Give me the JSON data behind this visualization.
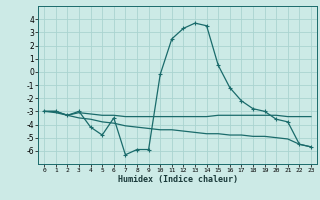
{
  "xlabel": "Humidex (Indice chaleur)",
  "background_color": "#cceae6",
  "grid_color": "#aad4d0",
  "line_color": "#1a6b6b",
  "x": [
    0,
    1,
    2,
    3,
    4,
    5,
    6,
    7,
    8,
    9,
    10,
    11,
    12,
    13,
    14,
    15,
    16,
    17,
    18,
    19,
    20,
    21,
    22,
    23
  ],
  "curve1": [
    -3.0,
    -3.0,
    -3.3,
    -3.0,
    -4.2,
    -4.8,
    -3.5,
    -6.3,
    -5.9,
    -5.9,
    -0.2,
    2.5,
    3.3,
    3.7,
    3.5,
    0.5,
    -1.2,
    -2.2,
    -2.8,
    -3.0,
    -3.6,
    -3.8,
    -5.5,
    -5.7
  ],
  "curve2": [
    -3.0,
    -3.0,
    -3.3,
    -3.1,
    -3.2,
    -3.3,
    -3.3,
    -3.4,
    -3.4,
    -3.4,
    -3.4,
    -3.4,
    -3.4,
    -3.4,
    -3.4,
    -3.3,
    -3.3,
    -3.3,
    -3.3,
    -3.3,
    -3.3,
    -3.4,
    -3.4,
    -3.4
  ],
  "curve3": [
    -3.0,
    -3.1,
    -3.3,
    -3.5,
    -3.6,
    -3.8,
    -3.9,
    -4.1,
    -4.2,
    -4.3,
    -4.4,
    -4.4,
    -4.5,
    -4.6,
    -4.7,
    -4.7,
    -4.8,
    -4.8,
    -4.9,
    -4.9,
    -5.0,
    -5.1,
    -5.5,
    -5.7
  ],
  "ylim": [
    -7,
    5
  ],
  "xlim": [
    -0.5,
    23.5
  ],
  "yticks": [
    -6,
    -5,
    -4,
    -3,
    -2,
    -1,
    0,
    1,
    2,
    3,
    4
  ],
  "xticks": [
    0,
    1,
    2,
    3,
    4,
    5,
    6,
    7,
    8,
    9,
    10,
    11,
    12,
    13,
    14,
    15,
    16,
    17,
    18,
    19,
    20,
    21,
    22,
    23
  ]
}
